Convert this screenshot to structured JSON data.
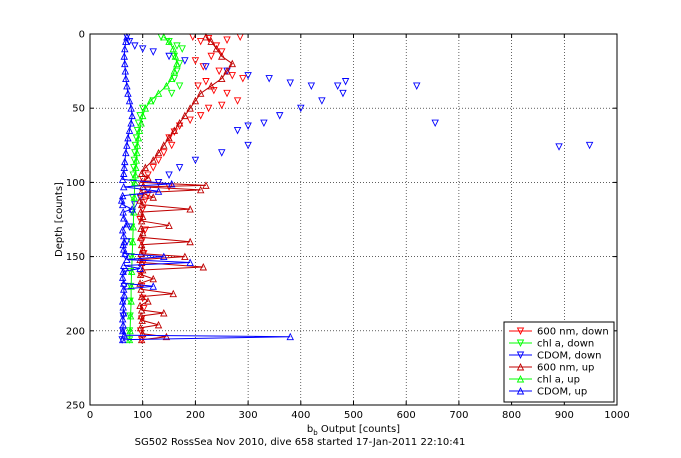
{
  "caption": "SG502 RossSea Nov 2010, dive 658 started 17-Jan-2011 22:10:41",
  "colors": {
    "red": "#ff0000",
    "dark_red": "#c00000",
    "green": "#00ff00",
    "blue": "#0000ff",
    "grid": "#000000",
    "background": "#ffffff"
  },
  "chart_data": {
    "type": "scatter",
    "xlabel_main": "b",
    "xlabel_sub": "b",
    "xlabel_rest": " Output [counts]",
    "ylabel": "Depth [counts]",
    "xlim": [
      0,
      1000
    ],
    "ylim": [
      0,
      250
    ],
    "y_reversed": true,
    "grid": true,
    "legend_placement": "bottom-right",
    "xticks": [
      0,
      100,
      200,
      300,
      400,
      500,
      600,
      700,
      800,
      900,
      1000
    ],
    "yticks": [
      0,
      50,
      100,
      150,
      200,
      250
    ],
    "xtick_labels": [
      "0",
      "100",
      "200",
      "300",
      "400",
      "500",
      "600",
      "700",
      "800",
      "900",
      "1000"
    ],
    "ytick_labels": [
      "0",
      "50",
      "100",
      "150",
      "200",
      "250"
    ],
    "series": [
      {
        "name": "600 nm, down",
        "color": "red",
        "marker": "triangle-down",
        "line": false,
        "points": [
          [
            195,
            2
          ],
          [
            210,
            5
          ],
          [
            225,
            3
          ],
          [
            240,
            8
          ],
          [
            260,
            4
          ],
          [
            285,
            2
          ],
          [
            250,
            12
          ],
          [
            230,
            15
          ],
          [
            200,
            18
          ],
          [
            215,
            22
          ],
          [
            245,
            25
          ],
          [
            270,
            28
          ],
          [
            290,
            30
          ],
          [
            220,
            32
          ],
          [
            205,
            35
          ],
          [
            235,
            38
          ],
          [
            260,
            40
          ],
          [
            280,
            45
          ],
          [
            250,
            48
          ],
          [
            225,
            50
          ],
          [
            210,
            55
          ],
          [
            190,
            58
          ],
          [
            170,
            62
          ],
          [
            160,
            66
          ],
          [
            150,
            70
          ],
          [
            155,
            75
          ],
          [
            140,
            80
          ],
          [
            130,
            85
          ],
          [
            120,
            90
          ],
          [
            110,
            95
          ],
          [
            100,
            98
          ],
          [
            130,
            100
          ],
          [
            150,
            103
          ],
          [
            110,
            108
          ],
          [
            105,
            112
          ],
          [
            100,
            118
          ],
          [
            95,
            125
          ],
          [
            105,
            132
          ],
          [
            98,
            140
          ],
          [
            102,
            148
          ],
          [
            100,
            155
          ],
          [
            96,
            162
          ],
          [
            98,
            170
          ],
          [
            100,
            178
          ],
          [
            102,
            185
          ],
          [
            98,
            192
          ],
          [
            96,
            200
          ],
          [
            98,
            206
          ]
        ]
      },
      {
        "name": "chl a, down",
        "color": "green",
        "marker": "triangle-down",
        "line": false,
        "points": [
          [
            135,
            2
          ],
          [
            150,
            5
          ],
          [
            165,
            8
          ],
          [
            175,
            10
          ],
          [
            160,
            15
          ],
          [
            170,
            20
          ],
          [
            165,
            25
          ],
          [
            160,
            30
          ],
          [
            170,
            35
          ],
          [
            155,
            40
          ],
          [
            120,
            45
          ],
          [
            100,
            50
          ],
          [
            95,
            55
          ],
          [
            92,
            60
          ],
          [
            90,
            65
          ],
          [
            88,
            70
          ],
          [
            86,
            75
          ],
          [
            85,
            80
          ],
          [
            84,
            85
          ],
          [
            83,
            90
          ],
          [
            82,
            95
          ],
          [
            82,
            100
          ],
          [
            81,
            110
          ],
          [
            80,
            120
          ],
          [
            79,
            130
          ],
          [
            78,
            140
          ],
          [
            78,
            150
          ],
          [
            77,
            160
          ],
          [
            77,
            170
          ],
          [
            76,
            180
          ],
          [
            76,
            190
          ],
          [
            75,
            200
          ],
          [
            75,
            206
          ]
        ]
      },
      {
        "name": "CDOM, down",
        "color": "blue",
        "marker": "triangle-down",
        "line": false,
        "points": [
          [
            70,
            2
          ],
          [
            75,
            5
          ],
          [
            85,
            8
          ],
          [
            100,
            10
          ],
          [
            120,
            12
          ],
          [
            150,
            15
          ],
          [
            180,
            18
          ],
          [
            220,
            22
          ],
          [
            260,
            25
          ],
          [
            300,
            28
          ],
          [
            340,
            30
          ],
          [
            380,
            33
          ],
          [
            420,
            35
          ],
          [
            470,
            35
          ],
          [
            485,
            32
          ],
          [
            480,
            40
          ],
          [
            440,
            45
          ],
          [
            400,
            50
          ],
          [
            360,
            55
          ],
          [
            330,
            60
          ],
          [
            300,
            62
          ],
          [
            280,
            65
          ],
          [
            620,
            35
          ],
          [
            655,
            60
          ],
          [
            890,
            76
          ],
          [
            948,
            75
          ],
          [
            300,
            75
          ],
          [
            250,
            80
          ],
          [
            200,
            85
          ],
          [
            170,
            90
          ],
          [
            150,
            95
          ],
          [
            130,
            100
          ],
          [
            110,
            105
          ],
          [
            95,
            110
          ],
          [
            85,
            115
          ],
          [
            80,
            120
          ],
          [
            75,
            130
          ],
          [
            70,
            140
          ],
          [
            68,
            150
          ],
          [
            66,
            160
          ],
          [
            65,
            170
          ],
          [
            64,
            180
          ],
          [
            63,
            190
          ],
          [
            62,
            200
          ],
          [
            61,
            206
          ]
        ]
      },
      {
        "name": "600 nm, up",
        "color": "dark_red",
        "marker": "triangle-up",
        "line": true,
        "points": [
          [
            98,
            206
          ],
          [
            145,
            204
          ],
          [
            100,
            202
          ],
          [
            96,
            198
          ],
          [
            130,
            196
          ],
          [
            99,
            193
          ],
          [
            97,
            190
          ],
          [
            140,
            188
          ],
          [
            98,
            186
          ],
          [
            95,
            183
          ],
          [
            110,
            180
          ],
          [
            98,
            177
          ],
          [
            158,
            175
          ],
          [
            97,
            172
          ],
          [
            95,
            168
          ],
          [
            120,
            165
          ],
          [
            96,
            162
          ],
          [
            100,
            159
          ],
          [
            215,
            157
          ],
          [
            98,
            154
          ],
          [
            95,
            152
          ],
          [
            180,
            150
          ],
          [
            97,
            148
          ],
          [
            100,
            145
          ],
          [
            98,
            142
          ],
          [
            190,
            140
          ],
          [
            96,
            137
          ],
          [
            100,
            134
          ],
          [
            97,
            131
          ],
          [
            150,
            129
          ],
          [
            98,
            126
          ],
          [
            100,
            123
          ],
          [
            96,
            120
          ],
          [
            190,
            118
          ],
          [
            98,
            115
          ],
          [
            95,
            112
          ],
          [
            120,
            110
          ],
          [
            97,
            107
          ],
          [
            210,
            105
          ],
          [
            100,
            103
          ],
          [
            220,
            102
          ],
          [
            98,
            100
          ],
          [
            110,
            97
          ],
          [
            98,
            94
          ],
          [
            105,
            90
          ],
          [
            120,
            85
          ],
          [
            130,
            80
          ],
          [
            140,
            75
          ],
          [
            150,
            70
          ],
          [
            160,
            65
          ],
          [
            170,
            60
          ],
          [
            180,
            55
          ],
          [
            190,
            50
          ],
          [
            200,
            45
          ],
          [
            210,
            40
          ],
          [
            230,
            35
          ],
          [
            250,
            30
          ],
          [
            260,
            25
          ],
          [
            270,
            20
          ],
          [
            250,
            15
          ],
          [
            240,
            10
          ],
          [
            230,
            5
          ],
          [
            220,
            2
          ]
        ]
      },
      {
        "name": "chl a, up",
        "color": "green",
        "marker": "triangle-up",
        "line": true,
        "points": [
          [
            75,
            206
          ],
          [
            76,
            200
          ],
          [
            77,
            190
          ],
          [
            78,
            180
          ],
          [
            78,
            170
          ],
          [
            79,
            160
          ],
          [
            80,
            150
          ],
          [
            81,
            140
          ],
          [
            82,
            130
          ],
          [
            83,
            120
          ],
          [
            84,
            110
          ],
          [
            85,
            100
          ],
          [
            86,
            95
          ],
          [
            87,
            90
          ],
          [
            88,
            85
          ],
          [
            89,
            80
          ],
          [
            90,
            75
          ],
          [
            92,
            70
          ],
          [
            94,
            65
          ],
          [
            97,
            60
          ],
          [
            100,
            55
          ],
          [
            105,
            50
          ],
          [
            115,
            45
          ],
          [
            130,
            40
          ],
          [
            145,
            35
          ],
          [
            155,
            30
          ],
          [
            160,
            25
          ],
          [
            165,
            20
          ],
          [
            162,
            15
          ],
          [
            158,
            10
          ],
          [
            150,
            5
          ],
          [
            140,
            2
          ]
        ]
      },
      {
        "name": "CDOM, up",
        "color": "blue",
        "marker": "triangle-up",
        "line": true,
        "points": [
          [
            62,
            206
          ],
          [
            380,
            204
          ],
          [
            65,
            203
          ],
          [
            62,
            200
          ],
          [
            63,
            196
          ],
          [
            62,
            192
          ],
          [
            64,
            188
          ],
          [
            63,
            184
          ],
          [
            62,
            180
          ],
          [
            65,
            176
          ],
          [
            64,
            172
          ],
          [
            120,
            170
          ],
          [
            64,
            168
          ],
          [
            62,
            164
          ],
          [
            63,
            160
          ],
          [
            95,
            158
          ],
          [
            64,
            156
          ],
          [
            190,
            154
          ],
          [
            70,
            152
          ],
          [
            140,
            150
          ],
          [
            66,
            148
          ],
          [
            64,
            145
          ],
          [
            63,
            142
          ],
          [
            65,
            140
          ],
          [
            64,
            136
          ],
          [
            62,
            132
          ],
          [
            70,
            128
          ],
          [
            64,
            124
          ],
          [
            63,
            120
          ],
          [
            80,
            118
          ],
          [
            62,
            115
          ],
          [
            60,
            112
          ],
          [
            62,
            109
          ],
          [
            130,
            106
          ],
          [
            64,
            103
          ],
          [
            155,
            101
          ],
          [
            62,
            98
          ],
          [
            64,
            94
          ],
          [
            65,
            90
          ],
          [
            66,
            86
          ],
          [
            68,
            80
          ],
          [
            70,
            75
          ],
          [
            72,
            70
          ],
          [
            75,
            65
          ],
          [
            78,
            60
          ],
          [
            80,
            55
          ],
          [
            78,
            50
          ],
          [
            75,
            45
          ],
          [
            72,
            40
          ],
          [
            70,
            35
          ],
          [
            68,
            30
          ],
          [
            67,
            25
          ],
          [
            66,
            20
          ],
          [
            65,
            15
          ],
          [
            66,
            10
          ],
          [
            68,
            5
          ],
          [
            70,
            2
          ]
        ]
      }
    ]
  }
}
